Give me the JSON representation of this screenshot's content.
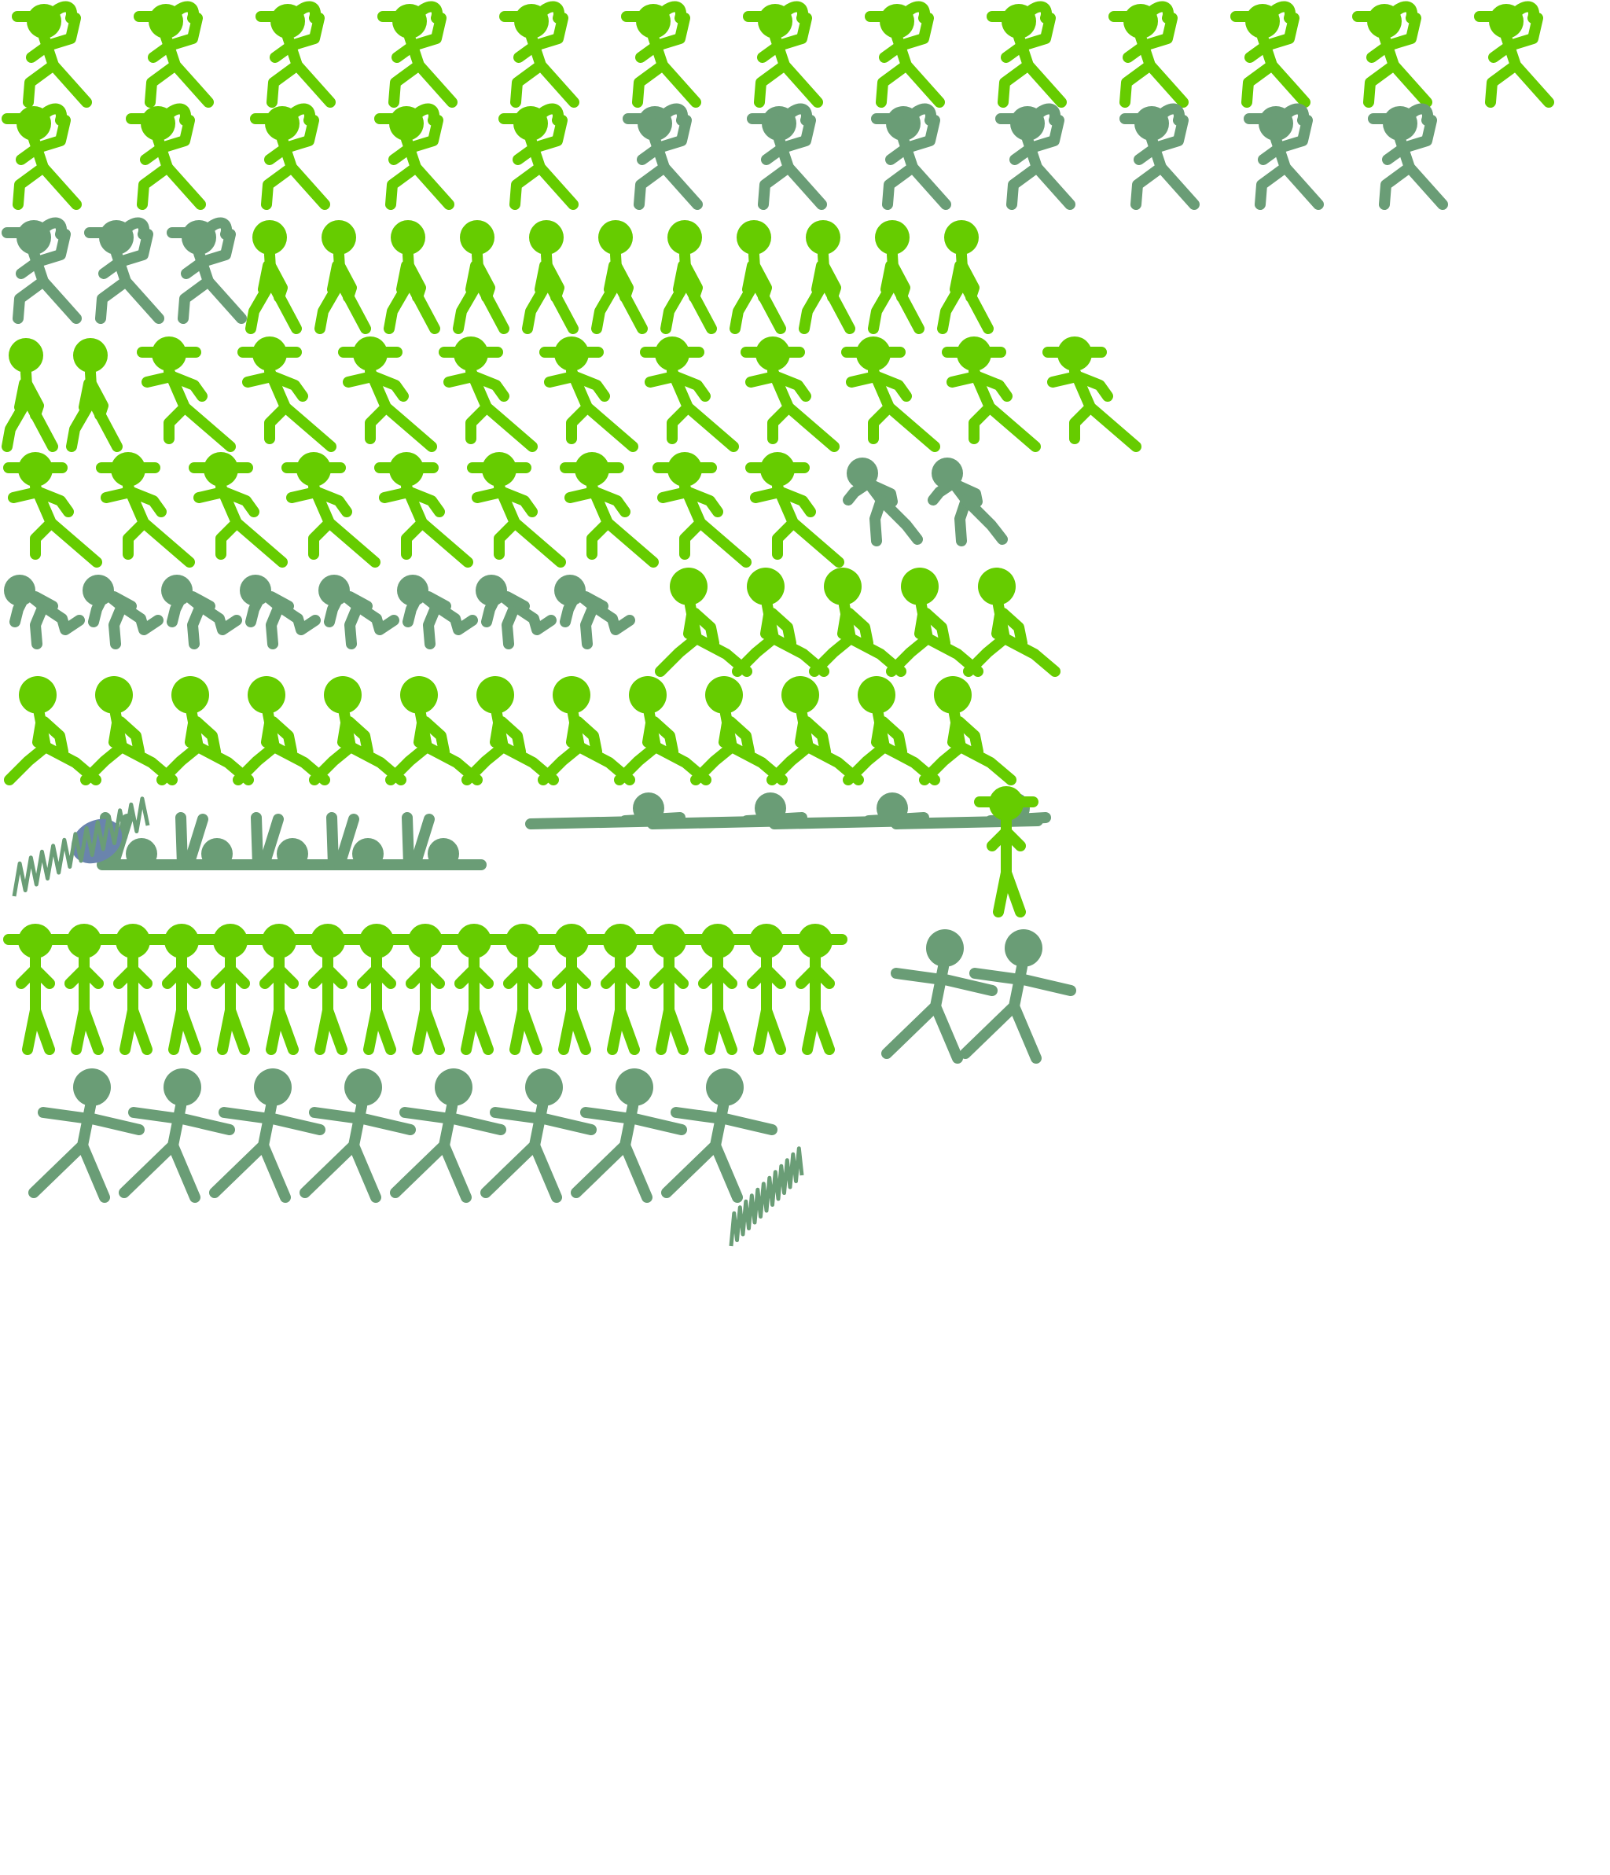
{
  "sprite_sheet": {
    "background": "#ffffff",
    "palette": {
      "bright_green": "#66cc00",
      "muted_green": "#6a9d76",
      "blue": "#6a84ad"
    },
    "rows": [
      {
        "pose": "cap-walk",
        "colors": [
          "bright_green",
          "bright_green",
          "bright_green",
          "bright_green",
          "bright_green",
          "bright_green",
          "bright_green",
          "bright_green",
          "bright_green",
          "bright_green",
          "bright_green",
          "bright_green",
          "bright_green"
        ]
      },
      {
        "pose": "cap-walk",
        "colors": [
          "bright_green",
          "bright_green",
          "bright_green",
          "bright_green",
          "bright_green",
          "muted_green",
          "muted_green",
          "muted_green",
          "muted_green",
          "muted_green",
          "muted_green",
          "muted_green"
        ]
      },
      {
        "pose": "cap-walk",
        "colors": [
          "muted_green",
          "muted_green",
          "muted_green"
        ]
      },
      {
        "pose": "walk",
        "colors": [
          "bright_green",
          "bright_green",
          "bright_green",
          "bright_green",
          "bright_green",
          "bright_green",
          "bright_green",
          "bright_green",
          "bright_green",
          "bright_green",
          "bright_green"
        ]
      },
      {
        "pose": "walk",
        "colors": [
          "bright_green",
          "bright_green"
        ]
      },
      {
        "pose": "lunge",
        "colors": [
          "bright_green",
          "bright_green",
          "bright_green",
          "bright_green",
          "bright_green",
          "bright_green",
          "bright_green",
          "bright_green",
          "bright_green",
          "bright_green"
        ]
      },
      {
        "pose": "lunge",
        "colors": [
          "bright_green",
          "bright_green",
          "bright_green",
          "bright_green",
          "bright_green",
          "bright_green",
          "bright_green",
          "bright_green",
          "bright_green"
        ]
      },
      {
        "pose": "hunch",
        "colors": [
          "muted_green",
          "muted_green"
        ]
      },
      {
        "pose": "crouch",
        "colors": [
          "muted_green",
          "muted_green",
          "muted_green",
          "muted_green",
          "muted_green",
          "muted_green",
          "muted_green",
          "muted_green"
        ]
      },
      {
        "pose": "run",
        "colors": [
          "bright_green",
          "bright_green",
          "bright_green",
          "bright_green",
          "bright_green"
        ]
      },
      {
        "pose": "run",
        "colors": [
          "bright_green",
          "bright_green",
          "bright_green",
          "bright_green",
          "bright_green",
          "bright_green",
          "bright_green",
          "bright_green",
          "bright_green",
          "bright_green",
          "bright_green",
          "bright_green",
          "bright_green"
        ]
      },
      {
        "pose": "knocked-down",
        "colors": [
          "muted_green",
          "muted_green",
          "muted_green",
          "muted_green",
          "muted_green"
        ]
      },
      {
        "pose": "lying-flat",
        "colors": [
          "muted_green",
          "muted_green",
          "muted_green",
          "muted_green"
        ]
      },
      {
        "pose": "stand-hat",
        "colors": [
          "bright_green"
        ]
      },
      {
        "pose": "stand-hat",
        "colors": [
          "bright_green",
          "bright_green",
          "bright_green",
          "bright_green",
          "bright_green",
          "bright_green",
          "bright_green",
          "bright_green",
          "bright_green",
          "bright_green",
          "bright_green",
          "bright_green",
          "bright_green",
          "bright_green",
          "bright_green",
          "bright_green",
          "bright_green"
        ]
      },
      {
        "pose": "cartwheel",
        "colors": [
          "muted_green",
          "muted_green"
        ]
      },
      {
        "pose": "cartwheel",
        "colors": [
          "muted_green",
          "muted_green",
          "muted_green",
          "muted_green",
          "muted_green",
          "muted_green",
          "muted_green",
          "muted_green"
        ]
      }
    ]
  }
}
